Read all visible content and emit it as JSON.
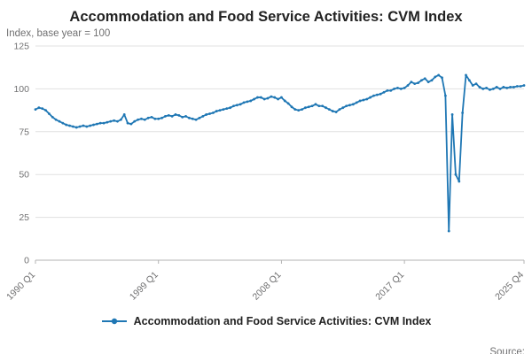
{
  "title": "Accommodation and Food Service Activities: CVM Index",
  "y_axis_label": "Index, base year = 100",
  "source_label": "Source:",
  "legend": {
    "label": "Accommodation and Food Service Activities: CVM Index",
    "marker": "line-with-dot"
  },
  "colors": {
    "line": "#1f77b4",
    "grid": "#e0e0e0",
    "axis": "#b3b3b3",
    "text_muted": "#707071",
    "title": "#222222"
  },
  "chart_data": {
    "type": "line",
    "title": "Accommodation and Food Service Activities: CVM Index",
    "xlabel": "",
    "ylabel": "Index, base year = 100",
    "ylim": [
      0,
      125
    ],
    "y_ticks": [
      0,
      25,
      50,
      75,
      100,
      125
    ],
    "grid": true,
    "legend_position": "bottom",
    "x_start": "1990 Q1",
    "x_end": "2025 Q4",
    "x_frequency": "quarterly",
    "x_tick_labels": [
      "1990 Q1",
      "1999 Q1",
      "2008 Q1",
      "2017 Q1",
      "2025 Q4"
    ],
    "x_tick_indices": [
      0,
      36,
      72,
      108,
      143
    ],
    "series": [
      {
        "name": "Accommodation and Food Service Activities: CVM Index",
        "values": [
          88,
          89,
          88.5,
          87.5,
          85.5,
          83.5,
          82,
          81,
          80,
          79,
          78.5,
          78,
          77.5,
          78,
          78.5,
          78,
          78.5,
          79,
          79.5,
          80,
          80,
          80.5,
          81,
          81.5,
          81,
          82,
          85,
          80,
          79.5,
          81,
          82,
          82.5,
          82,
          83,
          83.5,
          82.5,
          82.5,
          83,
          84,
          84.5,
          84,
          85,
          84.5,
          83.5,
          84,
          83,
          82.5,
          82,
          83,
          84,
          85,
          85.5,
          86,
          87,
          87.5,
          88,
          88.5,
          89,
          90,
          90.5,
          91,
          92,
          92.5,
          93,
          94,
          95,
          95,
          94,
          94.5,
          95.5,
          95,
          94,
          95,
          93,
          91.5,
          89.5,
          88,
          87.5,
          88,
          89,
          89.5,
          90,
          91,
          90,
          90,
          89,
          88,
          87,
          86.5,
          88,
          89,
          90,
          90.5,
          91,
          92,
          93,
          93.5,
          94,
          95,
          96,
          96.5,
          97,
          98,
          99,
          99,
          100,
          100.5,
          100,
          100.5,
          102,
          104,
          103,
          103.5,
          105,
          106,
          104,
          105,
          107,
          108,
          106.5,
          96,
          17,
          85,
          50,
          46,
          86,
          108,
          105,
          102,
          103,
          101,
          100,
          100.5,
          99.5,
          100,
          101,
          100,
          101,
          100.5,
          101,
          101,
          101.5,
          101.5,
          102
        ]
      }
    ]
  }
}
